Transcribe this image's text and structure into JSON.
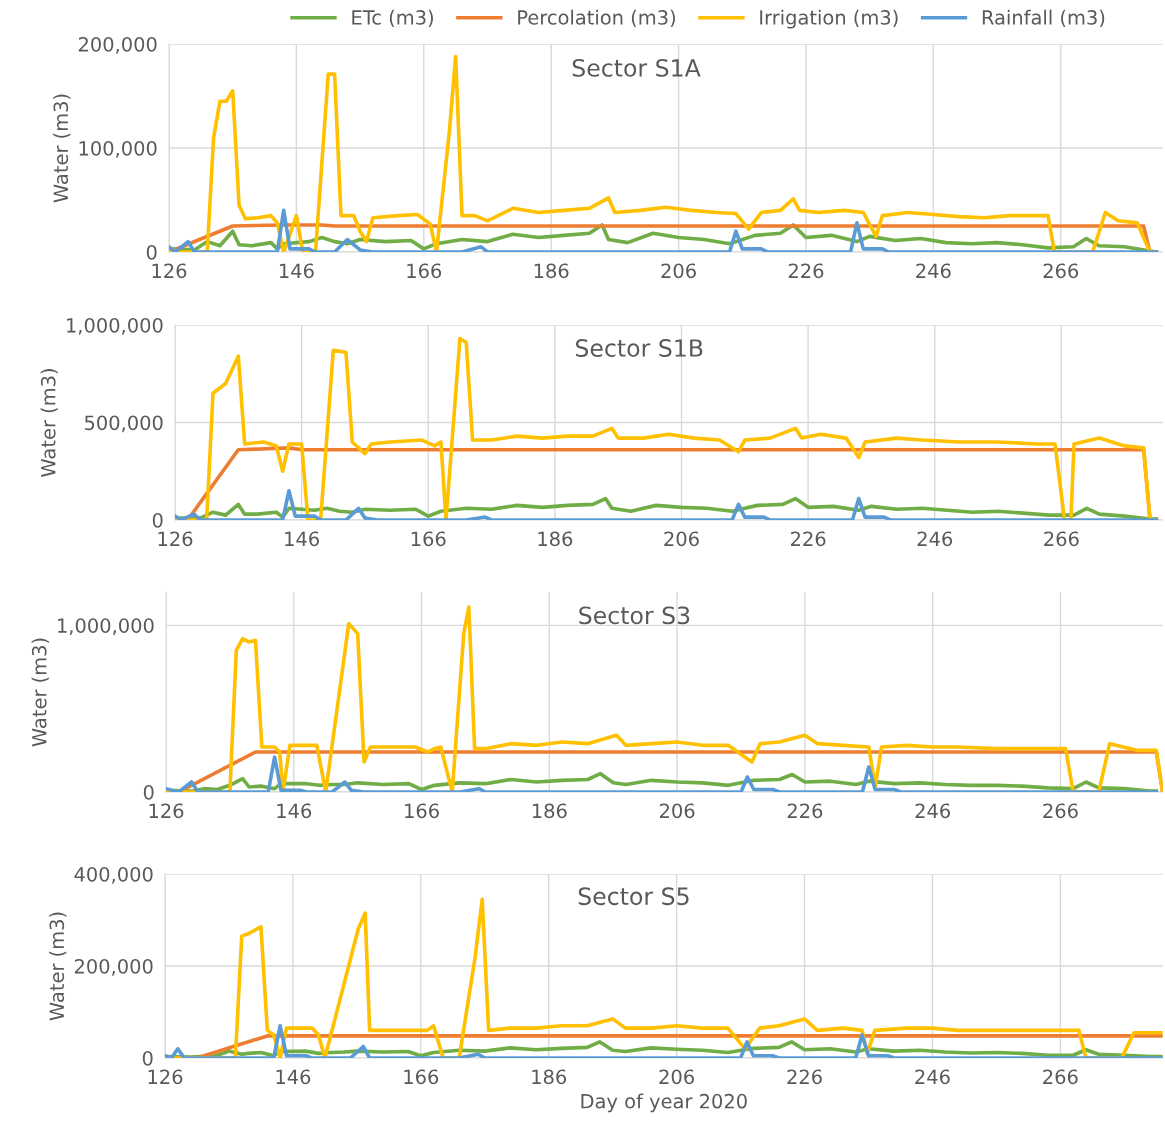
{
  "chart_data": [
    {
      "type": "line",
      "title": "Sector S1A",
      "ylabel": "Water (m3)",
      "xlim": [
        126,
        282
      ],
      "xticks": [
        126,
        146,
        166,
        186,
        206,
        226,
        246,
        266
      ],
      "ylim": [
        0,
        200000
      ],
      "yticks": [
        0,
        {
          "value": 100000,
          "label": "100,000"
        },
        {
          "value": 200000,
          "label": "200,000"
        }
      ],
      "grid": true,
      "legend": "top",
      "marker": "none",
      "line_style": "solid",
      "series": [
        {
          "name": "ETc (m3)",
          "color": "#70ad47",
          "x": [
            126,
            130,
            132,
            134,
            136,
            137,
            139,
            142,
            143,
            144,
            148,
            150,
            152,
            154,
            156,
            160,
            164,
            166,
            168,
            172,
            176,
            180,
            184,
            188,
            192,
            194,
            195,
            198,
            202,
            206,
            210,
            214,
            218,
            222,
            224,
            226,
            230,
            234,
            236,
            240,
            244,
            248,
            252,
            256,
            260,
            264,
            268,
            270,
            272,
            276,
            280,
            281
          ],
          "values": [
            3000,
            2000,
            10000,
            6000,
            20000,
            7000,
            6000,
            9000,
            3000,
            8000,
            10000,
            14000,
            10000,
            8000,
            12000,
            10000,
            11000,
            3000,
            8000,
            12000,
            10000,
            17000,
            14000,
            16000,
            18000,
            26000,
            12000,
            9000,
            18000,
            14000,
            12000,
            8000,
            16000,
            18000,
            26000,
            14000,
            16000,
            10000,
            15000,
            11000,
            13000,
            9000,
            8000,
            9000,
            7000,
            4000,
            5000,
            13000,
            6000,
            5000,
            1000,
            0
          ]
        },
        {
          "name": "Percolation (m3)",
          "color": "#ed7d31",
          "x": [
            126,
            136,
            144,
            150,
            152,
            279,
            280,
            281
          ],
          "values": [
            0,
            25000,
            26000,
            26000,
            25000,
            25000,
            0,
            0
          ]
        },
        {
          "name": "Irrigation (m3)",
          "color": "#ffc000",
          "x": [
            126,
            132,
            133,
            134,
            135,
            136,
            137,
            138,
            140,
            142,
            143,
            144,
            146,
            147,
            149,
            151,
            152,
            153,
            155,
            156,
            157,
            158,
            162,
            165,
            167,
            168,
            170,
            171,
            172,
            174,
            176,
            180,
            184,
            188,
            192,
            195,
            196,
            200,
            204,
            208,
            212,
            215,
            217,
            219,
            222,
            224,
            225,
            228,
            232,
            235,
            237,
            238,
            242,
            246,
            250,
            254,
            258,
            264,
            265,
            271,
            273,
            275,
            278,
            280,
            281
          ],
          "values": [
            0,
            0,
            110000,
            145000,
            145000,
            155000,
            45000,
            32000,
            33000,
            35000,
            28000,
            0,
            35000,
            0,
            0,
            171000,
            171000,
            35000,
            35000,
            20000,
            10000,
            33000,
            35000,
            36000,
            27000,
            0,
            115000,
            188000,
            35000,
            35000,
            30000,
            42000,
            38000,
            40000,
            42000,
            52000,
            38000,
            40000,
            43000,
            40000,
            38000,
            37000,
            22000,
            38000,
            40000,
            51000,
            40000,
            38000,
            40000,
            38000,
            15000,
            35000,
            38000,
            36000,
            34000,
            33000,
            35000,
            35000,
            0,
            0,
            38000,
            30000,
            28000,
            0,
            0
          ]
        },
        {
          "name": "Rainfall (m3)",
          "color": "#5b9bd5",
          "x": [
            126,
            127,
            129,
            130,
            143,
            144,
            145,
            148,
            149,
            152,
            154,
            156,
            158,
            172,
            175,
            176,
            214,
            215,
            216,
            219,
            220,
            233,
            234,
            235,
            238,
            239,
            281
          ],
          "values": [
            5000,
            0,
            10000,
            0,
            0,
            40000,
            3000,
            3000,
            0,
            0,
            12000,
            2000,
            0,
            0,
            5000,
            0,
            0,
            20000,
            3000,
            3000,
            0,
            0,
            28000,
            3000,
            3000,
            0,
            0
          ]
        }
      ]
    },
    {
      "type": "line",
      "title": "Sector S1B",
      "ylabel": "Water (m3)",
      "xlim": [
        126,
        282
      ],
      "xticks": [
        126,
        146,
        166,
        186,
        206,
        226,
        246,
        266
      ],
      "ylim": [
        0,
        1000000
      ],
      "yticks": [
        0,
        {
          "value": 500000,
          "label": "500,000"
        },
        {
          "value": 1000000,
          "label": "1,000,000"
        }
      ],
      "grid": true,
      "marker": "none",
      "line_style": "solid",
      "series": [
        {
          "color": "#70ad47",
          "x": [
            126,
            130,
            132,
            134,
            136,
            137,
            139,
            142,
            143,
            144,
            148,
            150,
            152,
            154,
            156,
            160,
            164,
            166,
            168,
            172,
            176,
            180,
            184,
            188,
            192,
            194,
            195,
            198,
            202,
            206,
            210,
            214,
            218,
            222,
            224,
            226,
            230,
            234,
            236,
            240,
            244,
            248,
            252,
            256,
            260,
            264,
            268,
            270,
            272,
            276,
            280,
            281
          ],
          "values": [
            10000,
            10000,
            40000,
            25000,
            80000,
            30000,
            30000,
            40000,
            15000,
            60000,
            50000,
            60000,
            45000,
            40000,
            55000,
            50000,
            55000,
            20000,
            45000,
            60000,
            55000,
            75000,
            65000,
            75000,
            80000,
            110000,
            60000,
            45000,
            75000,
            65000,
            60000,
            45000,
            75000,
            80000,
            110000,
            65000,
            70000,
            50000,
            70000,
            55000,
            60000,
            50000,
            40000,
            45000,
            35000,
            25000,
            25000,
            60000,
            30000,
            20000,
            5000,
            5000
          ]
        },
        {
          "color": "#ed7d31",
          "x": [
            126,
            128,
            136,
            144,
            146,
            279,
            280,
            281
          ],
          "values": [
            0,
            0,
            360000,
            370000,
            360000,
            360000,
            0,
            0
          ]
        },
        {
          "color": "#ffc000",
          "x": [
            126,
            131,
            132,
            134,
            136,
            137,
            140,
            142,
            143,
            144,
            146,
            147,
            149,
            151,
            153,
            154,
            156,
            157,
            160,
            165,
            167,
            168,
            168.8,
            171,
            172,
            173,
            176,
            180,
            184,
            188,
            192,
            195,
            196,
            200,
            204,
            208,
            212,
            215,
            216,
            220,
            224,
            225,
            228,
            232,
            234,
            235,
            240,
            244,
            250,
            256,
            262,
            265,
            266.5,
            267.5,
            268,
            272,
            276,
            279,
            280,
            281
          ],
          "values": [
            0,
            0,
            650000,
            700000,
            840000,
            390000,
            400000,
            380000,
            250000,
            390000,
            390000,
            0,
            0,
            870000,
            860000,
            400000,
            340000,
            390000,
            400000,
            410000,
            380000,
            400000,
            0,
            930000,
            910000,
            410000,
            410000,
            430000,
            420000,
            430000,
            430000,
            470000,
            420000,
            420000,
            440000,
            420000,
            410000,
            350000,
            410000,
            420000,
            470000,
            420000,
            440000,
            420000,
            320000,
            400000,
            420000,
            410000,
            400000,
            400000,
            390000,
            390000,
            0,
            0,
            390000,
            420000,
            380000,
            370000,
            0,
            0
          ]
        },
        {
          "color": "#5b9bd5",
          "x": [
            126,
            127,
            129,
            130,
            143,
            144,
            145,
            148,
            149,
            153,
            155,
            156,
            158,
            172,
            175,
            176,
            214,
            215,
            216,
            219,
            220,
            233,
            234,
            235,
            238,
            239,
            281
          ],
          "values": [
            20000,
            0,
            30000,
            0,
            0,
            150000,
            20000,
            20000,
            0,
            0,
            60000,
            10000,
            0,
            0,
            15000,
            0,
            0,
            80000,
            15000,
            15000,
            0,
            0,
            110000,
            15000,
            15000,
            0,
            0
          ]
        }
      ]
    },
    {
      "type": "line",
      "title": "Sector S3",
      "ylabel": "Water (m3)",
      "xlim": [
        126,
        282
      ],
      "xticks": [
        126,
        146,
        166,
        186,
        206,
        226,
        246,
        266
      ],
      "ylim": [
        0,
        1200000
      ],
      "yticks": [
        0,
        {
          "value": 1000000,
          "label": "1,000,000"
        }
      ],
      "grid": true,
      "marker": "none",
      "line_style": "solid",
      "series": [
        {
          "color": "#70ad47",
          "x": [
            126,
            130,
            132,
            134,
            136,
            138,
            139,
            141,
            143,
            144,
            148,
            150,
            152,
            154,
            156,
            160,
            164,
            166,
            168,
            172,
            176,
            180,
            184,
            188,
            192,
            194,
            196,
            198,
            202,
            206,
            210,
            214,
            218,
            222,
            224,
            226,
            230,
            234,
            236,
            240,
            244,
            248,
            252,
            256,
            260,
            264,
            268,
            270,
            272,
            276,
            280,
            281
          ],
          "values": [
            10000,
            5000,
            20000,
            15000,
            40000,
            80000,
            30000,
            35000,
            20000,
            50000,
            50000,
            40000,
            45000,
            45000,
            55000,
            45000,
            50000,
            15000,
            40000,
            55000,
            50000,
            75000,
            60000,
            70000,
            75000,
            110000,
            55000,
            45000,
            70000,
            60000,
            55000,
            40000,
            70000,
            75000,
            105000,
            60000,
            65000,
            45000,
            65000,
            50000,
            55000,
            45000,
            40000,
            40000,
            35000,
            25000,
            20000,
            60000,
            25000,
            20000,
            5000,
            5000
          ]
        },
        {
          "color": "#ed7d31",
          "x": [
            126,
            128,
            140,
            281,
            282
          ],
          "values": [
            0,
            0,
            240000,
            240000,
            0
          ]
        },
        {
          "color": "#ffc000",
          "x": [
            126,
            136,
            137,
            138,
            139,
            140,
            141,
            143,
            143.8,
            144.3,
            145.4,
            149.6,
            151,
            154.6,
            156,
            157,
            158,
            162,
            165,
            167,
            168,
            169,
            170.8,
            172.6,
            173.4,
            174.3,
            176,
            180,
            184,
            188,
            192,
            196.5,
            198,
            202,
            206,
            210,
            214,
            217.7,
            219,
            222,
            226,
            228,
            232,
            236,
            237,
            238,
            242,
            246,
            250,
            256,
            262,
            266.8,
            268,
            272,
            273.7,
            278,
            281,
            282
          ],
          "values": [
            0,
            0,
            850000,
            920000,
            900000,
            910000,
            270000,
            270000,
            240000,
            0,
            280000,
            280000,
            0,
            1010000,
            950000,
            180000,
            270000,
            270000,
            270000,
            240000,
            260000,
            270000,
            0,
            950000,
            1110000,
            260000,
            260000,
            290000,
            280000,
            300000,
            290000,
            340000,
            280000,
            290000,
            300000,
            280000,
            280000,
            180000,
            290000,
            300000,
            340000,
            290000,
            280000,
            270000,
            30000,
            270000,
            280000,
            270000,
            270000,
            260000,
            260000,
            260000,
            0,
            0,
            290000,
            250000,
            250000,
            0
          ]
        },
        {
          "color": "#5b9bd5",
          "x": [
            126,
            128,
            130,
            131,
            142,
            143,
            144,
            147,
            148,
            152,
            154,
            155,
            157,
            172,
            175,
            176,
            216,
            217,
            218,
            221,
            222,
            235,
            236,
            237,
            240,
            241,
            281
          ],
          "values": [
            20000,
            0,
            60000,
            0,
            0,
            210000,
            10000,
            10000,
            0,
            0,
            60000,
            10000,
            0,
            0,
            20000,
            0,
            0,
            90000,
            15000,
            15000,
            0,
            0,
            150000,
            15000,
            15000,
            0,
            0
          ]
        }
      ]
    },
    {
      "type": "line",
      "title": "Sector S5",
      "xlabel": "Day of year 2020",
      "ylabel": "Water (m3)",
      "xlim": [
        126,
        282
      ],
      "xticks": [
        126,
        146,
        166,
        186,
        206,
        226,
        246,
        266
      ],
      "ylim": [
        0,
        400000
      ],
      "yticks": [
        0,
        {
          "value": 200000,
          "label": "200,000"
        },
        {
          "value": 400000,
          "label": "400,000"
        }
      ],
      "grid": true,
      "marker": "none",
      "line_style": "solid",
      "series": [
        {
          "color": "#70ad47",
          "x": [
            126,
            130,
            134,
            136,
            138,
            139,
            141,
            143,
            144,
            148,
            150,
            152,
            154,
            156,
            160,
            164,
            166,
            168,
            172,
            176,
            180,
            184,
            188,
            192,
            194,
            196,
            198,
            202,
            206,
            210,
            214,
            218,
            222,
            224,
            226,
            230,
            234,
            236,
            240,
            244,
            248,
            252,
            256,
            260,
            264,
            268,
            270,
            272,
            276,
            280,
            282
          ],
          "values": [
            3000,
            2000,
            5000,
            15000,
            8000,
            10000,
            12000,
            5000,
            14000,
            15000,
            10000,
            12000,
            13000,
            15000,
            13000,
            14000,
            5000,
            12000,
            17000,
            15000,
            22000,
            18000,
            21000,
            23000,
            35000,
            17000,
            14000,
            22000,
            19000,
            17000,
            12000,
            21000,
            23000,
            35000,
            18000,
            20000,
            13000,
            20000,
            15000,
            17000,
            13000,
            11000,
            12000,
            10000,
            6000,
            6000,
            18000,
            8000,
            6000,
            3000,
            3000
          ]
        },
        {
          "color": "#ed7d31",
          "x": [
            126,
            131,
            142,
            282
          ],
          "values": [
            0,
            0,
            48000,
            48000
          ]
        },
        {
          "color": "#ffc000",
          "x": [
            126,
            137,
            138,
            139,
            141,
            142,
            143,
            144,
            145,
            149,
            150,
            151,
            156.2,
            157.3,
            158,
            162,
            167,
            168,
            169.5,
            172,
            174.5,
            175.6,
            176.6,
            180,
            184,
            188,
            192,
            196,
            198,
            202,
            206,
            210,
            214,
            216.7,
            219,
            222,
            226,
            228,
            232,
            235,
            235.8,
            237,
            242,
            246,
            250,
            256,
            262,
            268.9,
            270,
            275.6,
            277.5,
            282
          ],
          "values": [
            0,
            0,
            265000,
            270000,
            285000,
            60000,
            50000,
            0,
            65000,
            65000,
            50000,
            0,
            280000,
            315000,
            60000,
            60000,
            60000,
            70000,
            0,
            0,
            220000,
            345000,
            60000,
            65000,
            65000,
            70000,
            70000,
            85000,
            65000,
            65000,
            70000,
            65000,
            65000,
            20000,
            65000,
            70000,
            85000,
            60000,
            65000,
            60000,
            10000,
            60000,
            65000,
            65000,
            60000,
            60000,
            60000,
            60000,
            0,
            0,
            55000,
            55000
          ]
        },
        {
          "color": "#5b9bd5",
          "x": [
            126,
            127,
            128,
            129,
            143,
            144,
            145,
            148,
            149,
            155,
            157,
            158,
            172,
            175,
            176,
            216,
            217,
            218,
            221,
            222,
            234,
            235,
            236,
            239,
            240,
            282
          ],
          "values": [
            5000,
            0,
            20000,
            0,
            0,
            70000,
            5000,
            5000,
            0,
            0,
            25000,
            0,
            0,
            8000,
            0,
            0,
            35000,
            5000,
            5000,
            0,
            0,
            50000,
            5000,
            5000,
            0,
            0
          ]
        }
      ]
    }
  ]
}
